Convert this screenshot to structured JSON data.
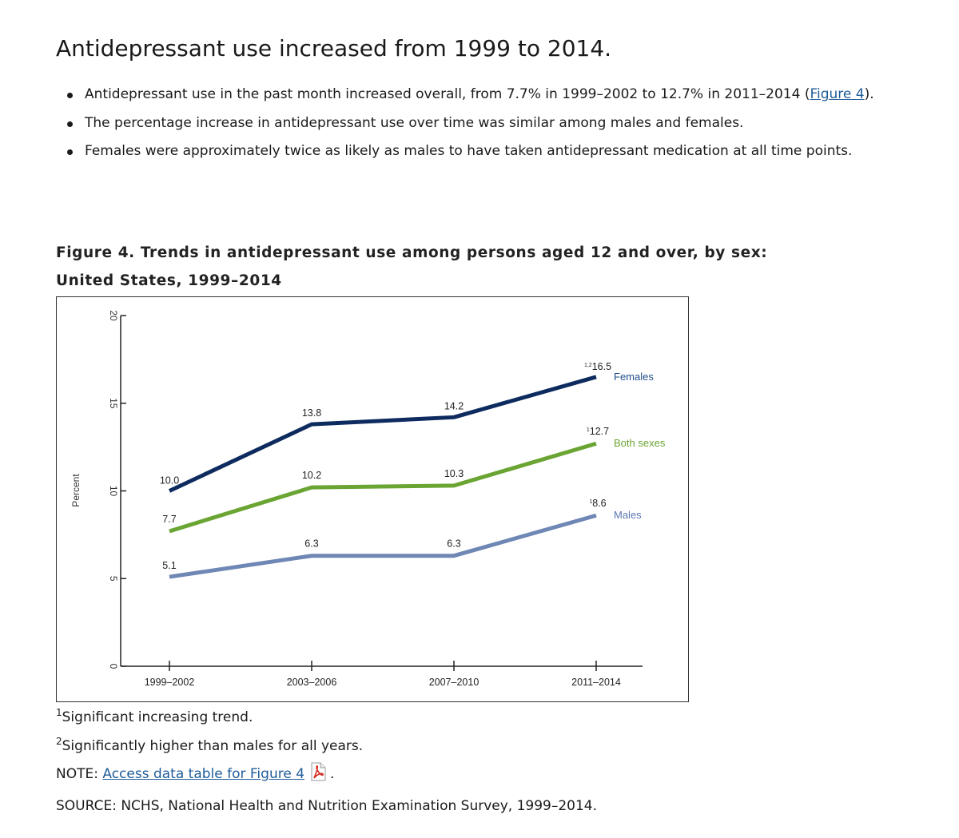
{
  "section": {
    "heading": "Antidepressant use increased from 1999 to 2014.",
    "bullets": {
      "b1_text": "Antidepressant use in the past month increased overall, from 7.7% in 1999–2002 to 12.7% in 2011–2014 (",
      "b1_link": "Figure 4",
      "b1_after": ").",
      "b2_text": "The percentage increase in antidepressant use over time was similar among males and females.",
      "b3_text": "Females were approximately twice as likely as males to have taken antidepressant medication at all time points."
    }
  },
  "figure": {
    "title_line1": "Figure 4. Trends in antidepressant use among persons aged 12 and over, by sex:",
    "title_line2": "United States, 1999–2014"
  },
  "chart_data": {
    "type": "line",
    "categories": [
      "1999–2002",
      "2003–2006",
      "2007–2010",
      "2011–2014"
    ],
    "ylabel": "Percent",
    "xlabel": "",
    "ylim": [
      0,
      20
    ],
    "yticks": [
      0,
      5,
      10,
      15,
      20
    ],
    "grid": false,
    "series": [
      {
        "name": "Females",
        "values": [
          10.0,
          13.8,
          14.2,
          16.5
        ],
        "labels": [
          "10.0",
          "13.8",
          "14.2",
          "16.5"
        ],
        "last_sup": "1,2",
        "color": "#0d2b5e",
        "legend_color": "#1f4e8c"
      },
      {
        "name": "Both sexes",
        "values": [
          7.7,
          10.2,
          10.3,
          12.7
        ],
        "labels": [
          "7.7",
          "10.2",
          "10.3",
          "12.7"
        ],
        "last_sup": "1",
        "color": "#6aa533",
        "legend_color": "#6aa533"
      },
      {
        "name": "Males",
        "values": [
          5.1,
          6.3,
          6.3,
          8.6
        ],
        "labels": [
          "5.1",
          "6.3",
          "6.3",
          "8.6"
        ],
        "last_sup": "1",
        "color": "#6f87b4",
        "legend_color": "#5a78b0"
      }
    ]
  },
  "footnotes": {
    "fn1_sup": "1",
    "fn1_text": "Significant increasing trend.",
    "fn2_sup": "2",
    "fn2_text": "Significantly higher than males for all years.",
    "note_label": "NOTE: ",
    "note_link": "Access data table for Figure 4",
    "note_end": ".",
    "source_text": "SOURCE: NCHS, National Health and Nutrition Examination Survey, 1999–2014."
  },
  "icons": {
    "pdf": "pdf-file-icon"
  },
  "colors": {
    "link": "#1f5c99",
    "pdf_red": "#d62b20"
  }
}
